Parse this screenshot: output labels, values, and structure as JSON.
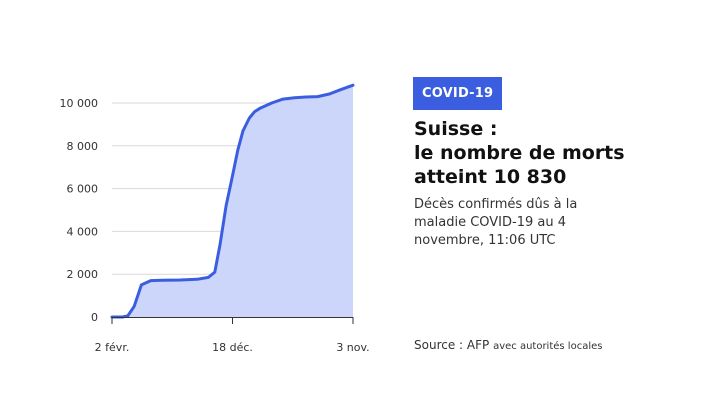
{
  "badge": "COVID-19",
  "title_lines": [
    "Suisse :",
    "le nombre de morts",
    "atteint 10 830"
  ],
  "subtitle": "Décès confirmés dûs à la maladie COVID-19 au 4 novembre, 11:06 UTC",
  "source": {
    "label": "Source : AFP",
    "detail": "avec autorités locales"
  },
  "colors": {
    "badge_bg": "#3b5ee0",
    "line": "#3b5ee0",
    "area": "#ccd5fa",
    "grid": "#d9d9d9"
  },
  "chart_data": {
    "type": "area",
    "title": "",
    "xlabel": "",
    "ylabel": "",
    "ylim": [
      0,
      10000
    ],
    "yticks": [
      0,
      2000,
      4000,
      6000,
      8000,
      10000
    ],
    "ytick_labels": [
      "0",
      "2 000",
      "4 000",
      "6 000",
      "8 000",
      "10 000"
    ],
    "xticks": [
      {
        "date": "2020-02-02",
        "label": "2 févr."
      },
      {
        "date": "2020-12-18",
        "label": "18 déc."
      },
      {
        "date": "2021-11-03",
        "label": "3 nov."
      }
    ],
    "grid": true,
    "series": [
      {
        "x": [
          "2020-02-02",
          "2020-03-01",
          "2020-03-15",
          "2020-04-01",
          "2020-04-20",
          "2020-05-15",
          "2020-06-15",
          "2020-08-01",
          "2020-09-15",
          "2020-10-15",
          "2020-11-01",
          "2020-11-15",
          "2020-12-01",
          "2020-12-18",
          "2021-01-01",
          "2021-01-15",
          "2021-02-01",
          "2021-02-15",
          "2021-03-01",
          "2021-04-01",
          "2021-05-01",
          "2021-06-01",
          "2021-07-01",
          "2021-08-01",
          "2021-09-01",
          "2021-10-01",
          "2021-11-03"
        ],
        "y": [
          0,
          0,
          50,
          500,
          1500,
          1700,
          1720,
          1730,
          1760,
          1850,
          2100,
          3400,
          5200,
          6600,
          7800,
          8700,
          9300,
          9600,
          9750,
          10000,
          10180,
          10250,
          10280,
          10300,
          10420,
          10620,
          10830
        ]
      }
    ]
  }
}
